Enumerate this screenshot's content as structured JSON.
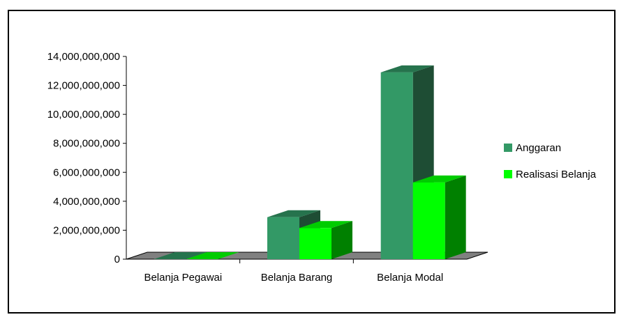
{
  "chart_data": {
    "type": "bar",
    "variant": "3d-clustered",
    "categories": [
      "Belanja Pegawai",
      "Belanja Barang",
      "Belanja Modal"
    ],
    "series": [
      {
        "name": "Anggaran",
        "values": [
          0,
          2900000000,
          12900000000
        ]
      },
      {
        "name": "Realisasi Belanja",
        "values": [
          0,
          2150000000,
          5300000000
        ]
      }
    ],
    "y_ticks": [
      "0",
      "2,000,000,000",
      "4,000,000,000",
      "6,000,000,000",
      "8,000,000,000",
      "10,000,000,000",
      "12,000,000,000",
      "14,000,000,000"
    ],
    "ylim": [
      0,
      14000000000
    ],
    "legend_position": "right",
    "grid": false,
    "colors": {
      "Anggaran": {
        "front": "#339966",
        "side": "#1e4d34",
        "top": "#26734d"
      },
      "Realisasi Belanja": {
        "front": "#00ff00",
        "side": "#008000",
        "top": "#00cc00"
      },
      "floor": "#808080"
    }
  }
}
